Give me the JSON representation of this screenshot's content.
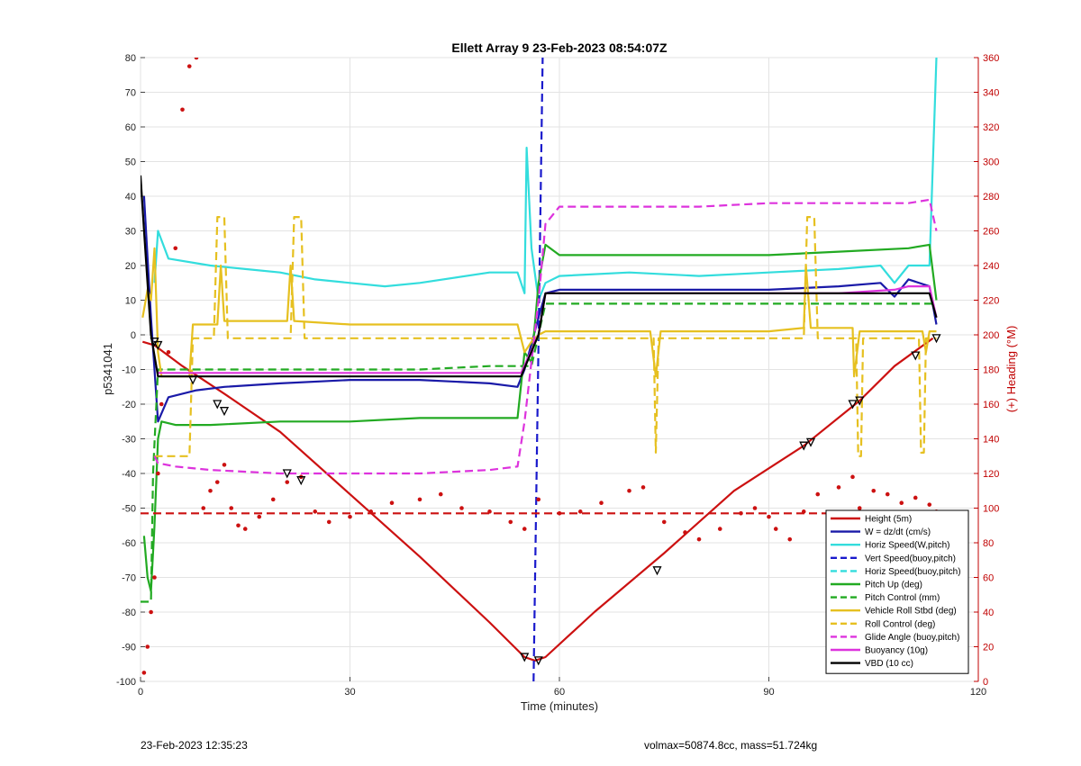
{
  "chart_data": {
    "type": "line",
    "title": "Ellett Array 9 23-Feb-2023 08:54:07Z",
    "xlabel": "Time (minutes)",
    "ylabel": "p5341041",
    "ylabel_right": "(+) Heading (°M)",
    "xlim": [
      0,
      120
    ],
    "ylim": [
      -100,
      80
    ],
    "ylim_right": [
      0,
      360
    ],
    "x_ticks": [
      0,
      30,
      60,
      90,
      120
    ],
    "y_ticks": [
      -100,
      -90,
      -80,
      -70,
      -60,
      -50,
      -40,
      -30,
      -20,
      -10,
      0,
      10,
      20,
      30,
      40,
      50,
      60,
      70,
      80
    ],
    "y_ticks_right": [
      0,
      20,
      40,
      60,
      80,
      100,
      120,
      140,
      160,
      180,
      200,
      220,
      240,
      260,
      280,
      300,
      320,
      340,
      360
    ],
    "grid": true,
    "legend_position": "bottom-right",
    "series": [
      {
        "name": "Height (5m)",
        "color": "#cc1111",
        "style": "solid",
        "axis": "left",
        "x": [
          0.3,
          2,
          6,
          12,
          20,
          30,
          40,
          50,
          55,
          56.5,
          58,
          65,
          75,
          85,
          95,
          103,
          108,
          113.5
        ],
        "y": [
          -2,
          -3,
          -9,
          -17,
          -28,
          -46,
          -64,
          -83,
          -93,
          -94,
          -93,
          -80,
          -63,
          -45,
          -32,
          -19,
          -9,
          -1
        ]
      },
      {
        "name": "W = dz/dt (cm/s)",
        "color": "#1a1aa8",
        "style": "solid",
        "axis": "left",
        "x": [
          0.5,
          1.5,
          2.5,
          4,
          8,
          12,
          20,
          30,
          40,
          50,
          54,
          55,
          57,
          58,
          60,
          70,
          80,
          90,
          100,
          106,
          108,
          110,
          113,
          114
        ],
        "y": [
          40,
          5,
          -25,
          -18,
          -16,
          -15,
          -14,
          -13,
          -13,
          -14,
          -15,
          -10,
          5,
          12,
          13,
          13,
          13,
          13,
          14,
          15,
          11,
          16,
          14,
          3
        ]
      },
      {
        "name": "Horiz Speed(W,pitch)",
        "color": "#33dddd",
        "style": "solid",
        "axis": "left",
        "x": [
          2,
          2.5,
          4,
          10,
          15,
          20,
          25,
          30,
          35,
          40,
          50,
          54,
          55,
          55.3,
          56,
          57,
          58,
          60,
          70,
          80,
          90,
          100,
          106,
          108,
          110,
          113,
          114
        ],
        "y": [
          15,
          30,
          22,
          20,
          19,
          18,
          16,
          15,
          14,
          15,
          18,
          18,
          12,
          54,
          25,
          10,
          15,
          17,
          18,
          17,
          18,
          19,
          20,
          15,
          20,
          20,
          80
        ]
      },
      {
        "name": "Vert Speed(buoy,pitch)",
        "color": "#1a1acc",
        "style": "dashed",
        "axis": "left",
        "x": [
          56.3,
          57.6
        ],
        "y": [
          -100,
          80
        ]
      },
      {
        "name": "Horiz Speed(buoy,pitch)",
        "color": "#33dddd",
        "style": "dashed",
        "axis": "left",
        "x": [],
        "y": []
      },
      {
        "name": "Pitch Up (deg)",
        "color": "#22aa22",
        "style": "solid",
        "axis": "left",
        "x": [
          0.5,
          1,
          1.5,
          2,
          2.5,
          3,
          5,
          10,
          20,
          30,
          40,
          50,
          54,
          55,
          56,
          57,
          58,
          60,
          70,
          80,
          90,
          100,
          110,
          113,
          114
        ],
        "y": [
          -58,
          -70,
          -74,
          -55,
          -30,
          -25,
          -26,
          -26,
          -25,
          -25,
          -24,
          -24,
          -24,
          -5,
          -8,
          15,
          26,
          23,
          23,
          23,
          23,
          24,
          25,
          26,
          10
        ]
      },
      {
        "name": "Pitch Control (mm)",
        "color": "#22aa22",
        "style": "dashed",
        "axis": "left",
        "x": [
          0,
          1.5,
          1.8,
          2.5,
          10,
          30,
          40,
          50,
          55,
          56,
          57,
          58,
          60,
          80,
          100,
          113,
          114
        ],
        "y": [
          -77,
          -77,
          -40,
          -10,
          -10,
          -10,
          -10,
          -9,
          -9,
          -9,
          0,
          9,
          9,
          9,
          9,
          9,
          9
        ]
      },
      {
        "name": "Vehicle Roll Stbd (deg)",
        "color": "#e6c020",
        "style": "solid",
        "axis": "left",
        "x": [
          0.3,
          1,
          1.5,
          2,
          2.5,
          3,
          7,
          7.5,
          10,
          11,
          11.5,
          12,
          20,
          21,
          21.5,
          22,
          30,
          40,
          50,
          54,
          55,
          56,
          57,
          58,
          60,
          70,
          73,
          73.8,
          74.5,
          80,
          90,
          95,
          95.3,
          96,
          102,
          102.2,
          103,
          110,
          112,
          112.5,
          113,
          114
        ],
        "y": [
          5,
          13,
          10,
          25,
          -5,
          -12,
          -12,
          3,
          3,
          3,
          20,
          4,
          4,
          4,
          20,
          4,
          3,
          3,
          3,
          3,
          -5,
          -2,
          0,
          1,
          1,
          1,
          1,
          -12,
          1,
          1,
          1,
          2,
          20,
          2,
          2,
          -12,
          1,
          1,
          1,
          -5,
          1,
          1
        ]
      },
      {
        "name": "Roll Control (deg)",
        "color": "#e6c020",
        "style": "dashed",
        "axis": "left",
        "x": [
          2,
          2.5,
          7,
          7.5,
          10.5,
          11,
          12,
          12.5,
          21.5,
          22,
          23,
          23.5,
          50,
          56,
          57,
          73.5,
          73.8,
          74.2,
          95,
          95.5,
          96.5,
          97,
          102.5,
          102.8,
          103.2,
          103.5,
          111.5,
          111.8,
          112.2,
          112.5,
          114
        ],
        "y": [
          -35,
          -35,
          -35,
          -1,
          -1,
          34,
          34,
          -1,
          -1,
          34,
          34,
          -1,
          -1,
          -1,
          -1,
          -1,
          -34,
          -1,
          -1,
          34,
          34,
          -1,
          -1,
          -35,
          -35,
          -1,
          -1,
          -34,
          -34,
          -1,
          -1
        ]
      },
      {
        "name": "Glide Angle (buoy,pitch)",
        "color": "#dd33dd",
        "style": "dashed",
        "axis": "left",
        "x": [
          2,
          2.5,
          5,
          10,
          20,
          30,
          40,
          50,
          54,
          55,
          57,
          58,
          60,
          70,
          80,
          90,
          100,
          110,
          113,
          114
        ],
        "y": [
          -35,
          -37,
          -38,
          -39,
          -40,
          -40,
          -40,
          -39,
          -38,
          -25,
          10,
          32,
          37,
          37,
          37,
          38,
          38,
          38,
          39,
          30
        ]
      },
      {
        "name": "Buoyancy (10g)",
        "color": "#dd33dd",
        "style": "solid",
        "axis": "left",
        "x": [
          2.5,
          10,
          30,
          50,
          54.5,
          57,
          58,
          60,
          80,
          100,
          108,
          110,
          113,
          114
        ],
        "y": [
          -11,
          -11,
          -11,
          -11,
          -11,
          0,
          12,
          12,
          12,
          12,
          13,
          14,
          14,
          5
        ]
      },
      {
        "name": "VBD (10 cc)",
        "color": "#000000",
        "style": "solid",
        "axis": "left",
        "x": [
          0,
          0.5,
          1.5,
          2.5,
          10,
          30,
          50,
          54.5,
          57,
          58,
          60,
          80,
          100,
          108,
          113,
          114
        ],
        "y": [
          46,
          30,
          0,
          -12,
          -12,
          -12,
          -12,
          -12,
          0,
          12,
          12,
          12,
          12,
          12,
          12,
          5
        ]
      },
      {
        "name": "Heading",
        "color": "#cc1111",
        "style": "dots",
        "axis": "right",
        "legend": false,
        "x": [
          0.5,
          1,
          1.5,
          2,
          2.5,
          3,
          4,
          5,
          6,
          7,
          8,
          9,
          10,
          11,
          12,
          13,
          14,
          15,
          17,
          19,
          21,
          23,
          25,
          27,
          30,
          33,
          36,
          40,
          43,
          46,
          50,
          53,
          55,
          57,
          60,
          63,
          66,
          70,
          72,
          75,
          78,
          80,
          83,
          86,
          88,
          90,
          91,
          93,
          95,
          97,
          100,
          102,
          103,
          105,
          107,
          109,
          111,
          113,
          114
        ],
        "y": [
          5,
          20,
          40,
          60,
          120,
          160,
          190,
          250,
          330,
          355,
          360,
          100,
          110,
          115,
          125,
          100,
          90,
          88,
          95,
          105,
          115,
          118,
          98,
          92,
          95,
          98,
          103,
          105,
          108,
          100,
          98,
          92,
          88,
          105,
          97,
          98,
          103,
          110,
          112,
          92,
          86,
          82,
          88,
          97,
          100,
          95,
          88,
          82,
          98,
          108,
          112,
          118,
          100,
          110,
          108,
          103,
          106,
          102,
          98
        ]
      },
      {
        "name": "Mean Heading",
        "color": "#cc1111",
        "style": "dashed",
        "axis": "right",
        "legend": false,
        "x": [
          0,
          114
        ],
        "y": [
          97,
          97
        ]
      }
    ],
    "markers": {
      "color": "#000000",
      "x": [
        2,
        2.5,
        7.5,
        11,
        12,
        21,
        23,
        55,
        57,
        74,
        95,
        96,
        102,
        103,
        111,
        114
      ],
      "y": [
        -2,
        -3,
        -13,
        -20,
        -22,
        -40,
        -42,
        -93,
        -94,
        -68,
        -32,
        -31,
        -20,
        -19,
        -6,
        -1
      ]
    }
  },
  "footer": {
    "left": "23-Feb-2023 12:35:23",
    "right": "volmax=50874.8cc, mass=51.724kg"
  }
}
